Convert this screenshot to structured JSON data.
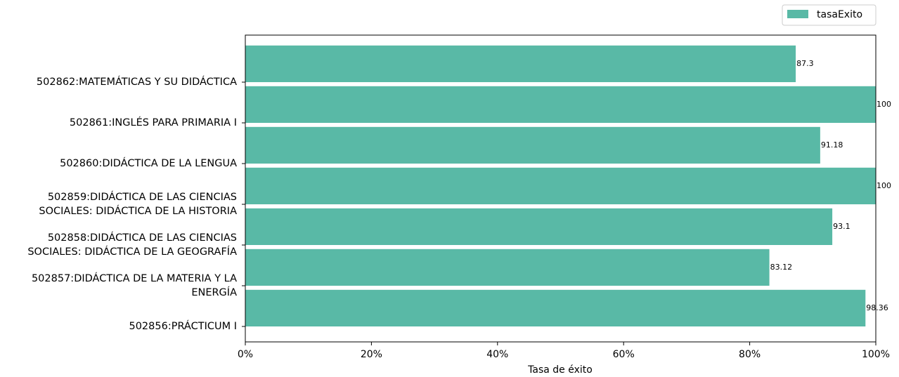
{
  "chart_data": {
    "type": "barh",
    "x_label": "Tasa de éxito",
    "categories": [
      "502856:PRÁCTICUM I",
      "502857:DIDÁCTICA DE LA MATERIA Y LA\nENERGÍA",
      "502858:DIDÁCTICA DE LAS CIENCIAS\nSOCIALES: DIDÁCTICA DE LA GEOGRAFÍA",
      "502859:DIDÁCTICA DE LAS CIENCIAS\nSOCIALES: DIDÁCTICA DE LA HISTORIA",
      "502860:DIDÁCTICA DE LA LENGUA",
      "502861:INGLÉS PARA PRIMARIA I",
      "502862:MATEMÁTICAS Y SU DIDÁCTICA"
    ],
    "series": [
      {
        "name": "tasaExito",
        "color": "#59b9a6",
        "values": [
          98.36,
          83.12,
          93.1,
          100,
          91.18,
          100,
          87.3
        ]
      }
    ],
    "xlim": [
      0,
      100
    ],
    "xticks": [
      {
        "value": 0,
        "label": "0%"
      },
      {
        "value": 20,
        "label": "20%"
      },
      {
        "value": 40,
        "label": "40%"
      },
      {
        "value": 60,
        "label": "60%"
      },
      {
        "value": 80,
        "label": "80%"
      },
      {
        "value": 100,
        "label": "100%"
      }
    ],
    "legend": "upper right"
  }
}
